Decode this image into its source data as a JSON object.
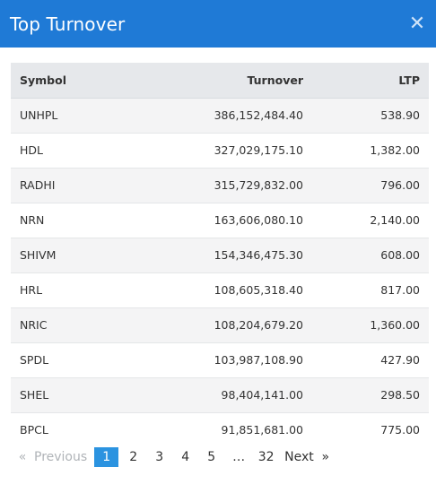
{
  "header": {
    "title": "Top Turnover",
    "close_glyph": "✕"
  },
  "table": {
    "columns": {
      "symbol": "Symbol",
      "turnover": "Turnover",
      "ltp": "LTP"
    },
    "rows": [
      {
        "symbol": "UNHPL",
        "turnover": "386,152,484.40",
        "ltp": "538.90"
      },
      {
        "symbol": "HDL",
        "turnover": "327,029,175.10",
        "ltp": "1,382.00"
      },
      {
        "symbol": "RADHI",
        "turnover": "315,729,832.00",
        "ltp": "796.00"
      },
      {
        "symbol": "NRN",
        "turnover": "163,606,080.10",
        "ltp": "2,140.00"
      },
      {
        "symbol": "SHIVM",
        "turnover": "154,346,475.30",
        "ltp": "608.00"
      },
      {
        "symbol": "HRL",
        "turnover": "108,605,318.40",
        "ltp": "817.00"
      },
      {
        "symbol": "NRIC",
        "turnover": "108,204,679.20",
        "ltp": "1,360.00"
      },
      {
        "symbol": "SPDL",
        "turnover": "103,987,108.90",
        "ltp": "427.90"
      },
      {
        "symbol": "SHEL",
        "turnover": "98,404,141.00",
        "ltp": "298.50"
      },
      {
        "symbol": "BPCL",
        "turnover": "91,851,681.00",
        "ltp": "775.00"
      }
    ]
  },
  "pagination": {
    "prev_arrow": "«",
    "prev_label": "Previous",
    "pages": [
      "1",
      "2",
      "3",
      "4",
      "5"
    ],
    "active_page": "1",
    "ellipsis": "…",
    "last_page": "32",
    "next_label": "Next",
    "next_arrow": "»"
  },
  "colors": {
    "header_bg": "#1f7ad6",
    "active_page_bg": "#2b93e0"
  }
}
